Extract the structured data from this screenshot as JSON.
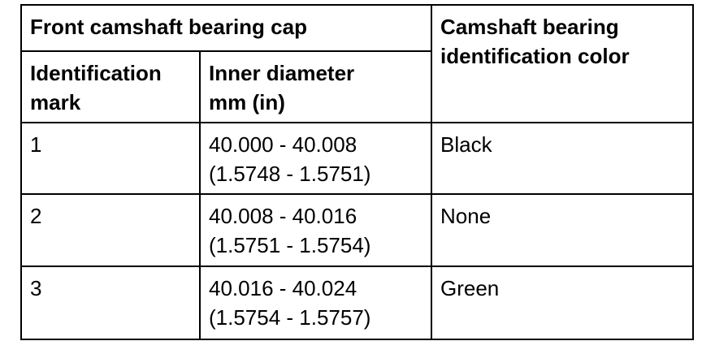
{
  "table": {
    "header": {
      "group": "Front camshaft bearing cap",
      "color_column": [
        "Camshaft bearing",
        "identification color"
      ],
      "columns": [
        [
          "Identification",
          "mark"
        ],
        [
          "Inner diameter",
          "mm (in)"
        ]
      ]
    },
    "rows": [
      [
        "1",
        [
          "40.000 - 40.008",
          "(1.5748 - 1.5751)"
        ],
        "Black"
      ],
      [
        "2",
        [
          "40.008 - 40.016",
          "(1.5751 - 1.5754)"
        ],
        "None"
      ],
      [
        "3",
        [
          "40.016 - 40.024",
          "(1.5754 - 1.5757)"
        ],
        "Green"
      ]
    ]
  }
}
